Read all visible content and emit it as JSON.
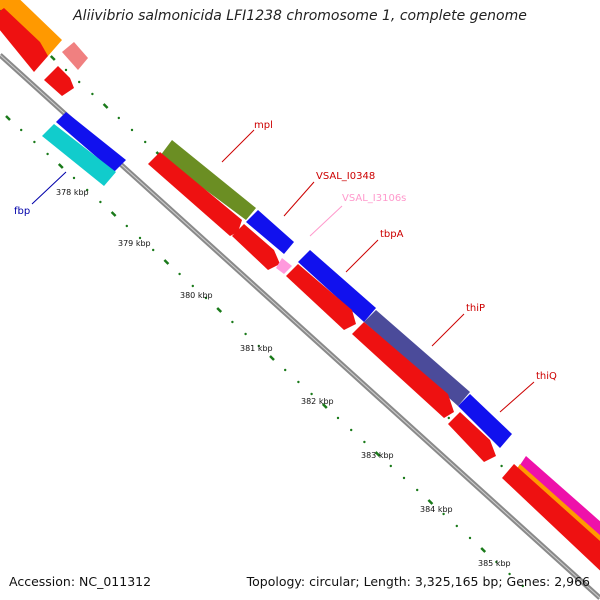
{
  "title": "Aliivibrio salmonicida LFI1238 chromosome 1, complete genome",
  "footer": {
    "accession": "Accession: NC_011312",
    "summary": "Topology: circular; Length: 3,325,165 bp; Genes: 2,966"
  },
  "colors": {
    "backbone": "#888888",
    "tick": "#1a7a1a",
    "red_feature": "#ee1111",
    "blue_feature": "#1111ee",
    "olive_feature": "#6b8e23",
    "slate_feature": "#4b4b9a",
    "cyan_feature": "#11cccc",
    "orange_feature": "#ff9900",
    "salmon_feature": "#f08080",
    "magenta_feature": "#ee11aa",
    "pink_feature": "#ff99dd"
  },
  "scale_labels": [
    "378 kbp",
    "379 kbp",
    "380 kbp",
    "381 kbp",
    "382 kbp",
    "383 kbp",
    "384 kbp",
    "385 kbp"
  ],
  "gene_labels": [
    {
      "text": "mpl",
      "color": "#cc0000"
    },
    {
      "text": "VSAL_I0348",
      "color": "#cc0000"
    },
    {
      "text": "VSAL_I3106s",
      "color": "#ff99cc"
    },
    {
      "text": "tbpA",
      "color": "#cc0000"
    },
    {
      "text": "thiP",
      "color": "#cc0000"
    },
    {
      "text": "thiQ",
      "color": "#cc0000"
    },
    {
      "text": "fbp",
      "color": "#0000aa"
    }
  ]
}
